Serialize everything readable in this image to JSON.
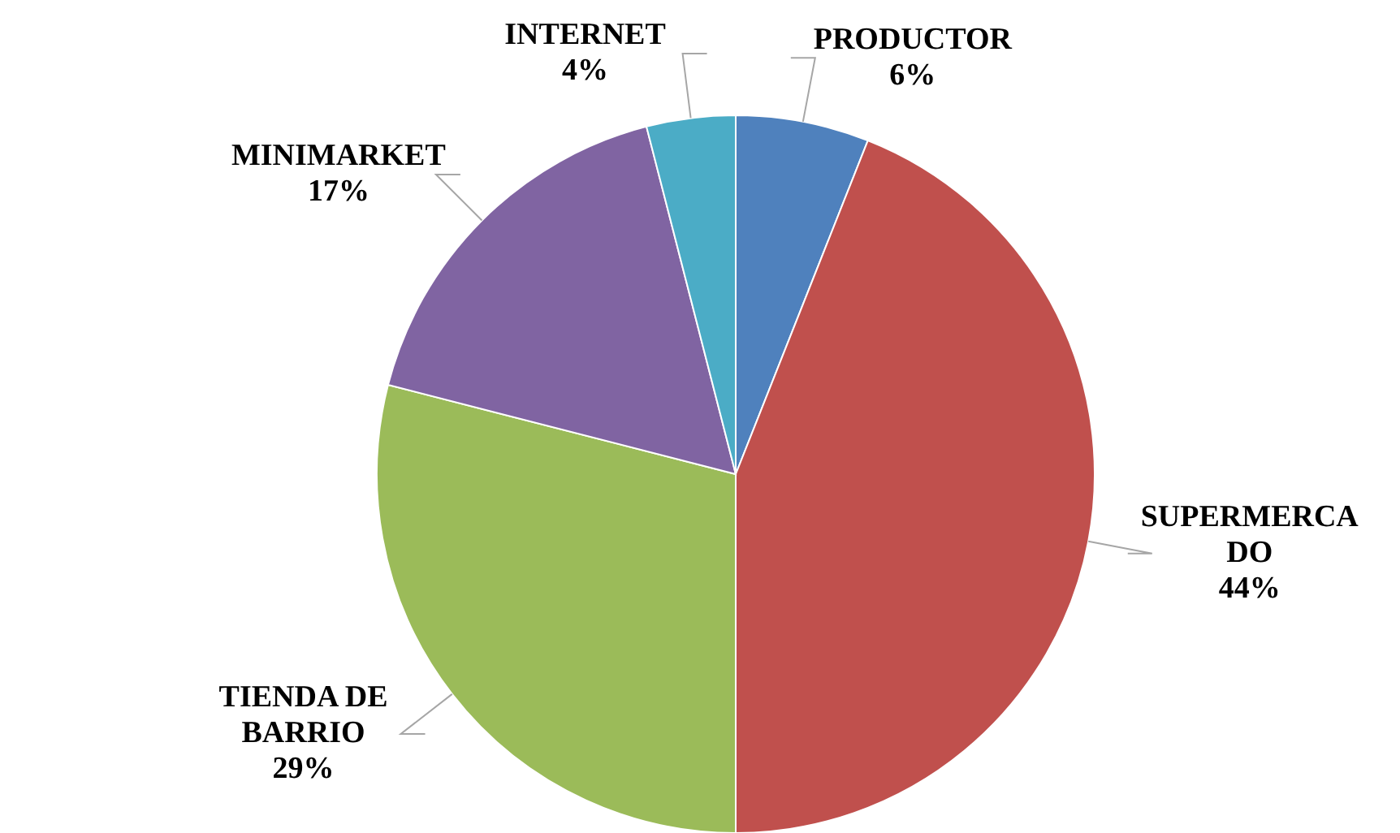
{
  "chart_data": {
    "type": "pie",
    "categories": [
      "PRODUCTOR",
      "SUPERMERCADO",
      "TIENDA DE BARRIO",
      "MINIMARKET",
      "INTERNET"
    ],
    "values": [
      6,
      44,
      29,
      17,
      4
    ],
    "value_labels": [
      "6%",
      "44%",
      "29%",
      "17%",
      "4%"
    ],
    "colors": [
      "#4f81bd",
      "#c0504d",
      "#9bbb59",
      "#8064a2",
      "#4bacc6"
    ]
  }
}
